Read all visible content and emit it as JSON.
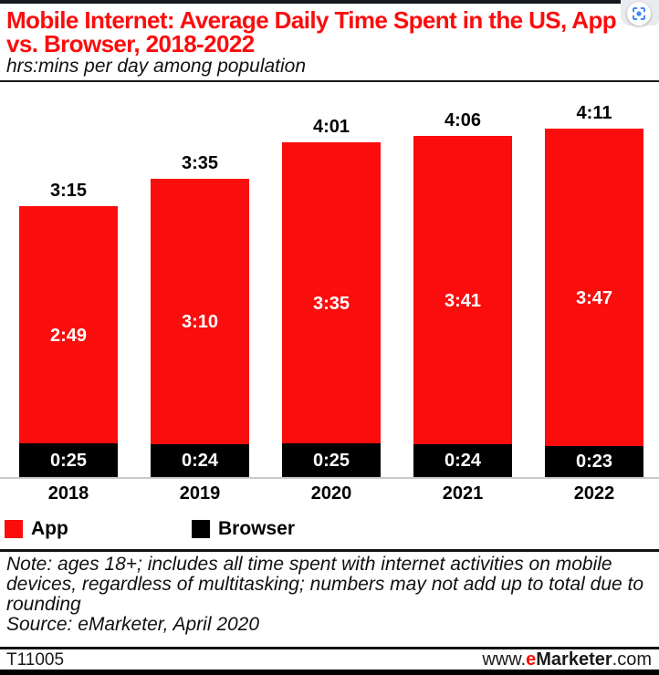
{
  "header": {
    "title": "Mobile Internet: Average Daily Time Spent in the US, App vs. Browser, 2018-2022",
    "subtitle": "hrs:mins per day among population"
  },
  "colors": {
    "accent_red": "#fb0d0d",
    "black": "#000000",
    "axis_line": "#c9c9c9"
  },
  "browser_ui": {
    "lens_icon_color": "#4285f4"
  },
  "chart_data": {
    "type": "bar",
    "stacked": true,
    "categories": [
      "2018",
      "2019",
      "2020",
      "2021",
      "2022"
    ],
    "series": [
      {
        "name": "App",
        "color": "#fb0d0d",
        "labels": [
          "2:49",
          "3:10",
          "3:35",
          "3:41",
          "3:47"
        ],
        "values_min": [
          169,
          190,
          215,
          221,
          227
        ]
      },
      {
        "name": "Browser",
        "color": "#000000",
        "labels": [
          "0:25",
          "0:24",
          "0:25",
          "0:24",
          "0:23"
        ],
        "values_min": [
          25,
          24,
          25,
          24,
          23
        ]
      }
    ],
    "totals": [
      "3:15",
      "3:35",
      "4:01",
      "4:06",
      "4:11"
    ],
    "totals_min": [
      195,
      215,
      241,
      246,
      251
    ],
    "title": "Mobile Internet: Average Daily Time Spent in the US, App vs. Browser, 2018-2022",
    "ylabel": "hrs:mins per day among population",
    "grid": false,
    "legend_position": "bottom"
  },
  "legend": [
    {
      "label": "App",
      "color": "#fb0d0d"
    },
    {
      "label": "Browser",
      "color": "#000000"
    }
  ],
  "note": "Note: ages 18+; includes all time spent with internet activities on mobile devices, regardless of multitasking; numbers may not add up to total due to rounding",
  "source": "Source: eMarketer, April 2020",
  "footer": {
    "chart_id": "T11005",
    "site_prefix": "www.",
    "site_brand_e": "e",
    "site_brand_rest": "Marketer",
    "site_suffix": ".com"
  }
}
